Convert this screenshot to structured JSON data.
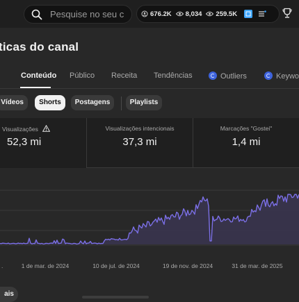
{
  "topbar": {
    "search_placeholder": "Pesquise no seu c",
    "stats": [
      {
        "icon": "subscribers-icon",
        "value": "676.2K"
      },
      {
        "icon": "eye-icon",
        "value": "8,034"
      },
      {
        "icon": "eye-icon",
        "value": "259.5K"
      }
    ]
  },
  "page": {
    "title": "ticas do canal"
  },
  "tabs": [
    {
      "label": "l",
      "active": false
    },
    {
      "label": "Conteúdo",
      "active": true
    },
    {
      "label": "Público",
      "active": false
    },
    {
      "label": "Receita",
      "active": false
    },
    {
      "label": "Tendências",
      "active": false
    },
    {
      "label": "Outliers",
      "active": false,
      "icon": "outliers-badge-icon"
    },
    {
      "label": "Keywo",
      "active": false,
      "icon": "keywords-badge-icon"
    }
  ],
  "chips": [
    {
      "label": "Vídeos",
      "selected": false
    },
    {
      "label": "Shorts",
      "selected": true
    },
    {
      "label": "Postagens",
      "selected": false
    },
    {
      "label": "Playlists",
      "selected": false
    }
  ],
  "metrics": [
    {
      "label": "Visualizações",
      "value": "52,3 mi",
      "icon": "warning-icon"
    },
    {
      "label": "Visualizações intencionais",
      "value": "37,3 mi"
    },
    {
      "label": "Marcações \"Gostei\"",
      "value": "1,4 mi"
    }
  ],
  "chart_data": {
    "type": "area",
    "x_tick_labels": [
      "1 de mar. de 2024",
      "10 de jul. de 2024",
      "19 de nov. de 2024",
      "31 de mar. de 2025"
    ],
    "line_color": "#7b6fe6",
    "fill_color": "#3a3550",
    "grid": true,
    "legend": "none"
  },
  "bottom": {
    "pill_label": "ais"
  }
}
